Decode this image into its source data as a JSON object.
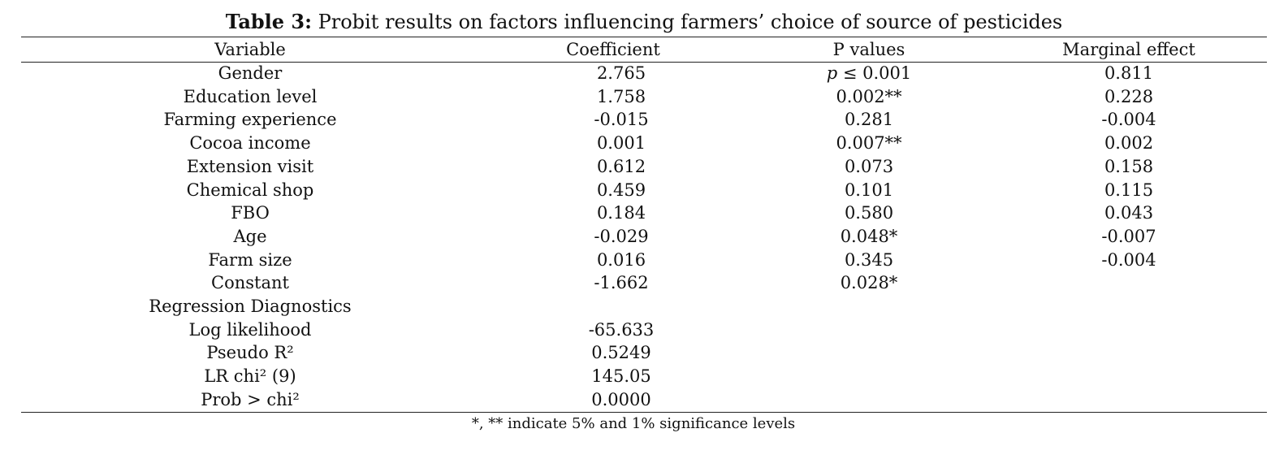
{
  "caption": {
    "label": "Table 3:",
    "text": " Probit results on factors influencing farmers’ choice of source of pesticides"
  },
  "headers": [
    "Variable",
    "Coefficient",
    "P values",
    "Marginal effect"
  ],
  "rows": [
    {
      "variable": "Gender",
      "coefficient": "2.765",
      "p_value": "p ≤ 0.001",
      "marginal_effect": "0.811"
    },
    {
      "variable": "Education level",
      "coefficient": "1.758",
      "p_value": "0.002**",
      "marginal_effect": "0.228"
    },
    {
      "variable": "Farming experience",
      "coefficient": "-0.015",
      "p_value": "0.281",
      "marginal_effect": "-0.004"
    },
    {
      "variable": "Cocoa income",
      "coefficient": "0.001",
      "p_value": "0.007**",
      "marginal_effect": "0.002"
    },
    {
      "variable": "Extension visit",
      "coefficient": "0.612",
      "p_value": "0.073",
      "marginal_effect": "0.158"
    },
    {
      "variable": "Chemical shop",
      "coefficient": "0.459",
      "p_value": "0.101",
      "marginal_effect": "0.115"
    },
    {
      "variable": "FBO",
      "coefficient": "0.184",
      "p_value": "0.580",
      "marginal_effect": "0.043"
    },
    {
      "variable": "Age",
      "coefficient": "-0.029",
      "p_value": "0.048*",
      "marginal_effect": "-0.007"
    },
    {
      "variable": "Farm size",
      "coefficient": "0.016",
      "p_value": "0.345",
      "marginal_effect": "-0.004"
    },
    {
      "variable": "Constant",
      "coefficient": "-1.662",
      "p_value": "0.028*",
      "marginal_effect": ""
    },
    {
      "variable": "Regression Diagnostics",
      "coefficient": "",
      "p_value": "",
      "marginal_effect": ""
    },
    {
      "variable": "Log likelihood",
      "coefficient": "-65.633",
      "p_value": "",
      "marginal_effect": ""
    },
    {
      "variable": "Pseudo R²",
      "coefficient": "0.5249",
      "p_value": "",
      "marginal_effect": ""
    },
    {
      "variable": "LR chi² (9)",
      "coefficient": "145.05",
      "p_value": "",
      "marginal_effect": ""
    },
    {
      "variable": "Prob > chi²",
      "coefficient": "0.0000",
      "p_value": "",
      "marginal_effect": ""
    }
  ],
  "footnote": "*, ** indicate 5% and 1% significance levels"
}
